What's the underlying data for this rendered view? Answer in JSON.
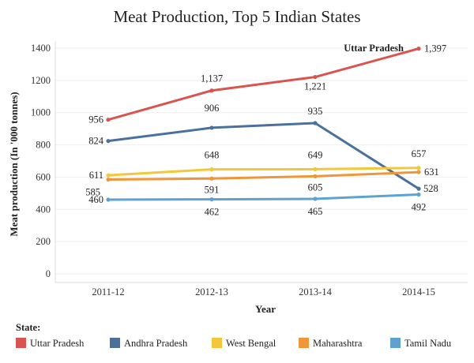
{
  "chart_data": {
    "type": "line",
    "title": "Meat Production, Top 5 Indian States",
    "xlabel": "Year",
    "ylabel": "Meat production (In '000 tonnes)",
    "categories": [
      "2011-12",
      "2012-13",
      "2013-14",
      "2014-15"
    ],
    "ylim": [
      0,
      1400
    ],
    "yticks": [
      "0",
      "200",
      "400",
      "600",
      "800",
      "1000",
      "1200",
      "1400"
    ],
    "grid": "horizontal",
    "legend_title": "State:",
    "legend_position": "bottom",
    "annotation": "Uttar Pradesh",
    "series": [
      {
        "name": "Uttar Pradesh",
        "color": "#d9534f",
        "values": [
          956,
          1137,
          1221,
          1397
        ],
        "labels": [
          "956",
          "1,137",
          "1,221",
          "1,397"
        ]
      },
      {
        "name": "Andhra Pradesh",
        "color": "#4a709b",
        "values": [
          824,
          906,
          935,
          528
        ],
        "labels": [
          "824",
          "906",
          "935",
          "528"
        ]
      },
      {
        "name": "West Bengal",
        "color": "#f2c83a",
        "values": [
          611,
          648,
          649,
          657
        ],
        "labels": [
          "611",
          "648",
          "649",
          "657"
        ]
      },
      {
        "name": "Maharashtra",
        "color": "#f0963a",
        "values": [
          585,
          591,
          605,
          631
        ],
        "labels": [
          "585",
          "591",
          "605",
          "631"
        ]
      },
      {
        "name": "Tamil Nadu",
        "color": "#5fa2cf",
        "values": [
          460,
          462,
          465,
          492
        ],
        "labels": [
          "460",
          "462",
          "465",
          "492"
        ]
      }
    ]
  }
}
